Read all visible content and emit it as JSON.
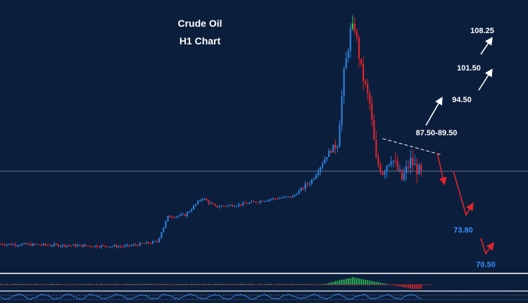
{
  "colors": {
    "background": "#0b1f3d",
    "bull_candle": "#2f7fd8",
    "bear_candle": "#e0242a",
    "peak_wick": "#3ec93e",
    "level_text": "#ffffff",
    "target_text": "#3a8eff",
    "up_arrow": "#ffffff",
    "down_arrow": "#e0242a",
    "macd_histogram": "#2fbf4f",
    "oscillator_line": "#3a7fe0",
    "panel_divider": "#c8ccd4"
  },
  "chart_data": {
    "type": "candlestick",
    "title": "Crude Oil",
    "subtitle": "H1  Chart",
    "timeframe": "H1",
    "grid": false,
    "y_range": [
      68,
      112
    ],
    "resistance_levels": [
      "87.50-89.50",
      "94.50",
      "101.50",
      "108.25"
    ],
    "support_levels": [
      "73.80",
      "70.50"
    ],
    "price_path_description": "sideways near 72, grind up to about 89, spike to about 110, sell-off back to about 83",
    "price_waypoints": [
      {
        "bar": 0,
        "close": 72.0
      },
      {
        "bar": 58,
        "close": 71.6
      },
      {
        "bar": 73,
        "close": 72.4
      },
      {
        "bar": 78,
        "close": 76.6
      },
      {
        "bar": 86,
        "close": 76.9
      },
      {
        "bar": 94,
        "close": 79.8
      },
      {
        "bar": 100,
        "close": 78.3
      },
      {
        "bar": 112,
        "close": 78.7
      },
      {
        "bar": 126,
        "close": 79.6
      },
      {
        "bar": 136,
        "close": 80.0
      },
      {
        "bar": 145,
        "close": 82.8
      },
      {
        "bar": 152,
        "close": 87.0
      },
      {
        "bar": 157,
        "close": 89.2
      },
      {
        "bar": 160,
        "close": 100.6
      },
      {
        "bar": 163,
        "close": 107.8
      },
      {
        "bar": 165,
        "close": 108.6
      },
      {
        "bar": 168,
        "close": 101.4
      },
      {
        "bar": 172,
        "close": 95.6
      },
      {
        "bar": 175,
        "close": 86.0
      },
      {
        "bar": 178,
        "close": 84.3
      },
      {
        "bar": 182,
        "close": 86.8
      },
      {
        "bar": 187,
        "close": 82.9
      },
      {
        "bar": 191,
        "close": 86.0
      },
      {
        "bar": 196,
        "close": 83.8
      }
    ],
    "projected_up_path": [
      {
        "step": 0,
        "price": 87.5
      },
      {
        "step": 1,
        "price": 94.5
      },
      {
        "step": 2,
        "price": 101.5
      },
      {
        "step": 3,
        "price": 108.25
      }
    ],
    "projected_down_path": [
      {
        "step": 0,
        "price": 83.8
      },
      {
        "step": 1,
        "price": 73.8
      },
      {
        "step": 2,
        "price": 70.5
      }
    ],
    "trendline": {
      "from_bar": 178,
      "from_price": 89.8,
      "to_bar": 205,
      "to_price": 87.1,
      "style": "dashed"
    },
    "horizontal_line": {
      "price": 84.3
    },
    "indicator_panels": [
      "MACD histogram",
      "oscillator"
    ]
  }
}
